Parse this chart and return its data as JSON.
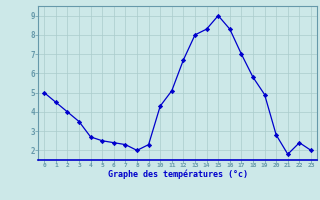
{
  "x": [
    0,
    1,
    2,
    3,
    4,
    5,
    6,
    7,
    8,
    9,
    10,
    11,
    12,
    13,
    14,
    15,
    16,
    17,
    18,
    19,
    20,
    21,
    22,
    23
  ],
  "y": [
    5.0,
    4.5,
    4.0,
    3.5,
    2.7,
    2.5,
    2.4,
    2.3,
    2.0,
    2.3,
    4.3,
    5.1,
    6.7,
    8.0,
    8.3,
    9.0,
    8.3,
    7.0,
    5.8,
    4.9,
    2.8,
    1.8,
    2.4,
    2.0
  ],
  "xlabel": "Graphe des températures (°c)",
  "ylim": [
    1.5,
    9.5
  ],
  "xlim": [
    -0.5,
    23.5
  ],
  "yticks": [
    2,
    3,
    4,
    5,
    6,
    7,
    8,
    9
  ],
  "xticks": [
    0,
    1,
    2,
    3,
    4,
    5,
    6,
    7,
    8,
    9,
    10,
    11,
    12,
    13,
    14,
    15,
    16,
    17,
    18,
    19,
    20,
    21,
    22,
    23
  ],
  "line_color": "#0000cc",
  "marker_color": "#0000cc",
  "bg_color": "#cce8e8",
  "grid_color": "#aacccc",
  "axis_label_color": "#0000cc",
  "tick_label_color": "#0000cc",
  "spine_color": "#6699aa"
}
